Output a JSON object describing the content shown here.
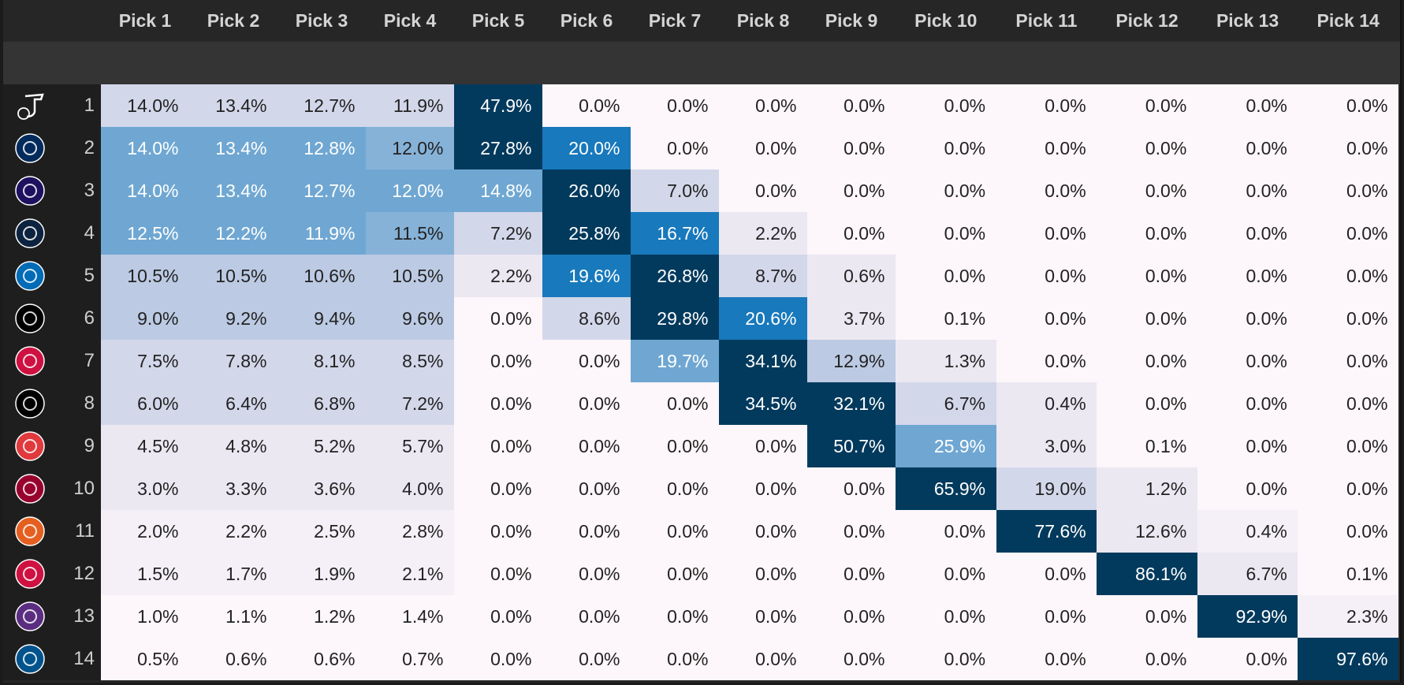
{
  "chart_data": {
    "type": "heatmap",
    "title": "",
    "columns": [
      "Pick 1",
      "Pick 2",
      "Pick 3",
      "Pick 4",
      "Pick 5",
      "Pick 6",
      "Pick 7",
      "Pick 8",
      "Pick 9",
      "Pick 10",
      "Pick 11",
      "Pick 12",
      "Pick 13",
      "Pick 14"
    ],
    "rows": [
      {
        "seed": "1",
        "team_icon": "jazz-logo",
        "values": [
          "14.0%",
          "13.4%",
          "12.7%",
          "11.9%",
          "47.9%",
          "0.0%",
          "0.0%",
          "0.0%",
          "0.0%",
          "0.0%",
          "0.0%",
          "0.0%",
          "0.0%",
          "0.0%"
        ]
      },
      {
        "seed": "2",
        "team_icon": "wizards-logo",
        "values": [
          "14.0%",
          "13.4%",
          "12.8%",
          "12.0%",
          "27.8%",
          "20.0%",
          "0.0%",
          "0.0%",
          "0.0%",
          "0.0%",
          "0.0%",
          "0.0%",
          "0.0%",
          "0.0%"
        ]
      },
      {
        "seed": "3",
        "team_icon": "hornets-logo",
        "values": [
          "14.0%",
          "13.4%",
          "12.7%",
          "12.0%",
          "14.8%",
          "26.0%",
          "7.0%",
          "0.0%",
          "0.0%",
          "0.0%",
          "0.0%",
          "0.0%",
          "0.0%",
          "0.0%"
        ]
      },
      {
        "seed": "4",
        "team_icon": "pelicans-logo",
        "values": [
          "12.5%",
          "12.2%",
          "11.9%",
          "11.5%",
          "7.2%",
          "25.8%",
          "16.7%",
          "2.2%",
          "0.0%",
          "0.0%",
          "0.0%",
          "0.0%",
          "0.0%",
          "0.0%"
        ]
      },
      {
        "seed": "5",
        "team_icon": "76ers-logo",
        "values": [
          "10.5%",
          "10.5%",
          "10.6%",
          "10.5%",
          "2.2%",
          "19.6%",
          "26.8%",
          "8.7%",
          "0.6%",
          "0.0%",
          "0.0%",
          "0.0%",
          "0.0%",
          "0.0%"
        ]
      },
      {
        "seed": "6",
        "team_icon": "nets-logo",
        "values": [
          "9.0%",
          "9.2%",
          "9.4%",
          "9.6%",
          "0.0%",
          "8.6%",
          "29.8%",
          "20.6%",
          "3.7%",
          "0.1%",
          "0.0%",
          "0.0%",
          "0.0%",
          "0.0%"
        ]
      },
      {
        "seed": "7",
        "team_icon": "raptors-logo",
        "values": [
          "7.5%",
          "7.8%",
          "8.1%",
          "8.5%",
          "0.0%",
          "0.0%",
          "19.7%",
          "34.1%",
          "12.9%",
          "1.3%",
          "0.0%",
          "0.0%",
          "0.0%",
          "0.0%"
        ]
      },
      {
        "seed": "8",
        "team_icon": "spurs-logo",
        "values": [
          "6.0%",
          "6.4%",
          "6.8%",
          "7.2%",
          "0.0%",
          "0.0%",
          "0.0%",
          "34.5%",
          "32.1%",
          "6.7%",
          "0.4%",
          "0.0%",
          "0.0%",
          "0.0%"
        ]
      },
      {
        "seed": "9",
        "team_icon": "trail-blazers-logo",
        "values": [
          "4.5%",
          "4.8%",
          "5.2%",
          "5.7%",
          "0.0%",
          "0.0%",
          "0.0%",
          "0.0%",
          "50.7%",
          "25.9%",
          "3.0%",
          "0.1%",
          "0.0%",
          "0.0%"
        ]
      },
      {
        "seed": "10",
        "team_icon": "heat-logo",
        "values": [
          "3.0%",
          "3.3%",
          "3.6%",
          "4.0%",
          "0.0%",
          "0.0%",
          "0.0%",
          "0.0%",
          "0.0%",
          "65.9%",
          "19.0%",
          "1.2%",
          "0.0%",
          "0.0%"
        ]
      },
      {
        "seed": "11",
        "team_icon": "suns-logo",
        "values": [
          "2.0%",
          "2.2%",
          "2.5%",
          "2.8%",
          "0.0%",
          "0.0%",
          "0.0%",
          "0.0%",
          "0.0%",
          "0.0%",
          "77.6%",
          "12.6%",
          "0.4%",
          "0.0%"
        ]
      },
      {
        "seed": "12",
        "team_icon": "bulls-logo",
        "values": [
          "1.5%",
          "1.7%",
          "1.9%",
          "2.1%",
          "0.0%",
          "0.0%",
          "0.0%",
          "0.0%",
          "0.0%",
          "0.0%",
          "0.0%",
          "86.1%",
          "6.7%",
          "0.1%"
        ]
      },
      {
        "seed": "13",
        "team_icon": "kings-logo",
        "values": [
          "1.0%",
          "1.1%",
          "1.2%",
          "1.4%",
          "0.0%",
          "0.0%",
          "0.0%",
          "0.0%",
          "0.0%",
          "0.0%",
          "0.0%",
          "0.0%",
          "92.9%",
          "2.3%"
        ]
      },
      {
        "seed": "14",
        "team_icon": "mavericks-logo",
        "values": [
          "0.5%",
          "0.6%",
          "0.6%",
          "0.7%",
          "0.0%",
          "0.0%",
          "0.0%",
          "0.0%",
          "0.0%",
          "0.0%",
          "0.0%",
          "0.0%",
          "0.0%",
          "97.6%"
        ]
      }
    ],
    "shade_levels": [
      [
        2,
        2,
        2,
        2,
        6,
        0,
        0,
        0,
        0,
        0,
        0,
        0,
        0,
        0
      ],
      [
        4,
        4,
        4,
        8,
        6,
        5,
        0,
        0,
        0,
        0,
        0,
        0,
        0,
        0
      ],
      [
        4,
        4,
        4,
        4,
        4,
        6,
        2,
        0,
        0,
        0,
        0,
        0,
        0,
        0
      ],
      [
        4,
        4,
        4,
        8,
        2,
        6,
        5,
        1,
        0,
        0,
        0,
        0,
        0,
        0
      ],
      [
        3,
        3,
        3,
        3,
        1,
        5,
        6,
        2,
        1,
        0,
        0,
        0,
        0,
        0
      ],
      [
        3,
        3,
        3,
        3,
        0,
        2,
        6,
        5,
        1,
        0,
        0,
        0,
        0,
        0
      ],
      [
        2,
        2,
        2,
        2,
        0,
        0,
        4,
        6,
        3,
        1,
        0,
        0,
        0,
        0
      ],
      [
        2,
        2,
        2,
        2,
        0,
        0,
        0,
        6,
        6,
        2,
        1,
        0,
        0,
        0
      ],
      [
        1,
        1,
        1,
        1,
        0,
        0,
        0,
        0,
        6,
        4,
        1,
        0,
        0,
        0
      ],
      [
        1,
        1,
        1,
        1,
        0,
        0,
        0,
        0,
        0,
        6,
        2,
        1,
        0,
        0
      ],
      [
        7,
        7,
        7,
        7,
        0,
        0,
        0,
        0,
        0,
        0,
        6,
        1,
        7,
        0
      ],
      [
        7,
        7,
        7,
        7,
        0,
        0,
        0,
        0,
        0,
        0,
        0,
        6,
        1,
        0
      ],
      [
        0,
        0,
        0,
        0,
        0,
        0,
        0,
        0,
        0,
        0,
        0,
        0,
        6,
        7
      ],
      [
        0,
        0,
        0,
        0,
        0,
        0,
        0,
        0,
        0,
        0,
        0,
        0,
        0,
        6
      ]
    ],
    "palette": [
      "#fdf6fa",
      "#ece8f2",
      "#d3d7ea",
      "#bccae3",
      "#6fa7d2",
      "#1879bc",
      "#023a5d",
      "#f5f0f7",
      "#86b2d8"
    ],
    "light_text_levels": [
      4,
      5,
      6
    ],
    "team_colors": {
      "jazz-logo": "#ffffff",
      "wizards-logo": "#002b5c",
      "hornets-logo": "#1d1160",
      "pelicans-logo": "#0c2340",
      "76ers-logo": "#006bb6",
      "nets-logo": "#000000",
      "raptors-logo": "#ce1141",
      "spurs-logo": "#000000",
      "trail-blazers-logo": "#e03a3e",
      "heat-logo": "#98002e",
      "suns-logo": "#e56020",
      "bulls-logo": "#ce1141",
      "kings-logo": "#5a2d81",
      "mavericks-logo": "#00538c"
    }
  }
}
